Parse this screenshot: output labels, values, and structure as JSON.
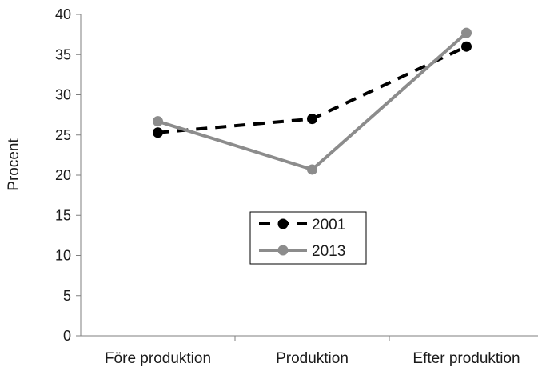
{
  "chart_data": {
    "type": "line",
    "categories": [
      "Före produktion",
      "Produktion",
      "Efter produktion"
    ],
    "series": [
      {
        "name": "2001",
        "values": [
          25.3,
          27.0,
          36.0
        ],
        "color": "#000000",
        "dash": "dashed"
      },
      {
        "name": "2013",
        "values": [
          26.7,
          20.7,
          37.7
        ],
        "color": "#8c8c8c",
        "dash": "solid"
      }
    ],
    "title": "",
    "xlabel": "",
    "ylabel": "Procent",
    "ylim": [
      0,
      40
    ],
    "yticks": [
      0,
      5,
      10,
      15,
      20,
      25,
      30,
      35,
      40
    ],
    "grid": false,
    "legend": "center"
  }
}
